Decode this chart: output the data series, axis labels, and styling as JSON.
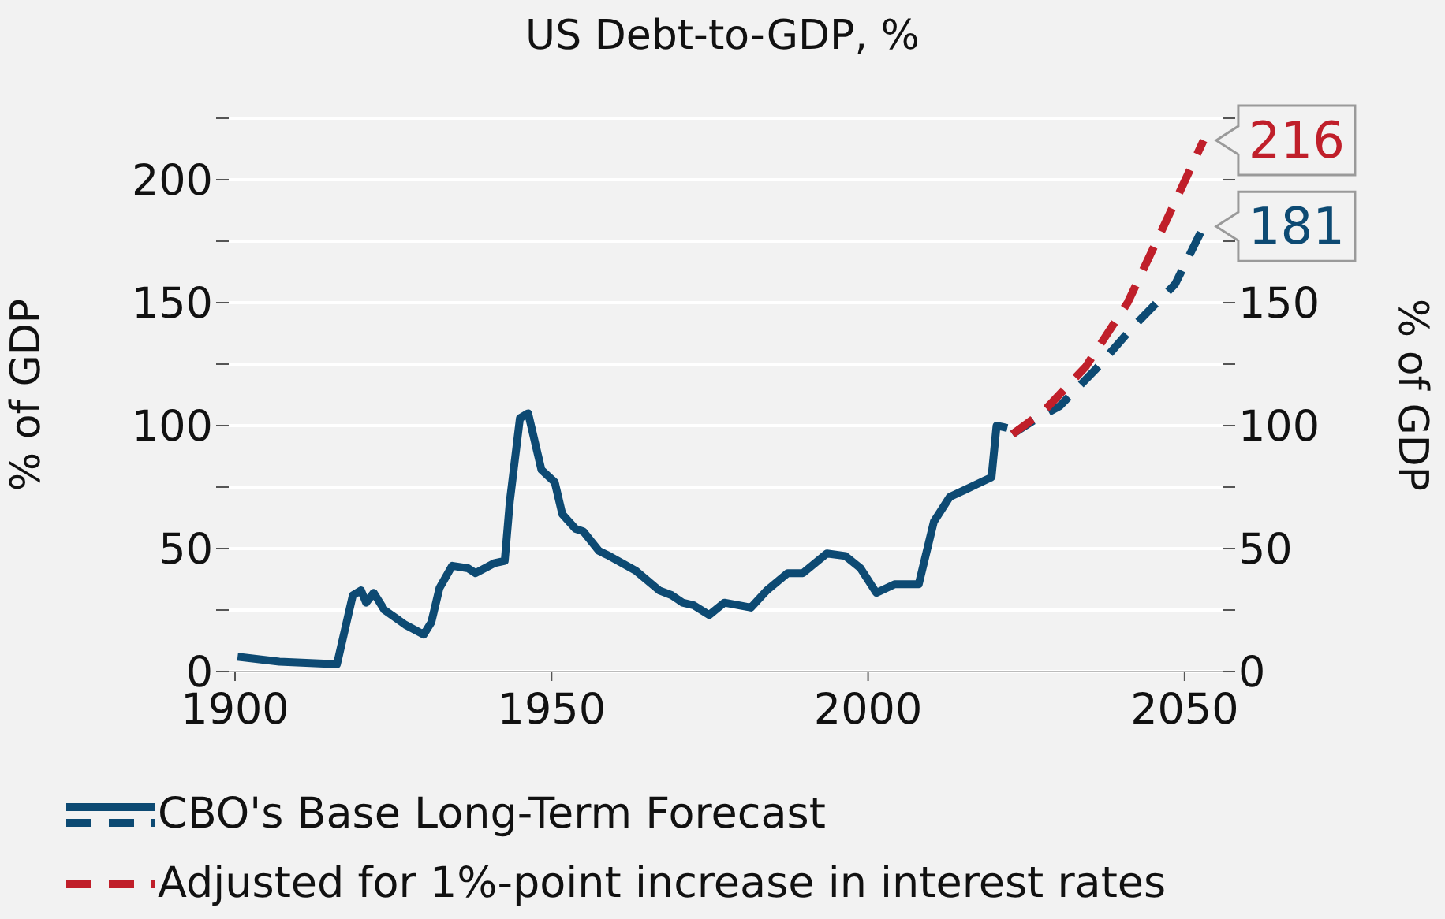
{
  "chart_data": {
    "type": "line",
    "title": "US Debt-to-GDP, %",
    "ylabel": "% of GDP",
    "y2label": "% of GDP",
    "xlim": [
      1899,
      2056
    ],
    "xticks": [
      1900,
      1950,
      2000,
      2050
    ],
    "ylim": [
      0,
      225
    ],
    "yticks": [
      0,
      {
        "value": 25,
        "label": null
      },
      50,
      {
        "value": 75,
        "label": null
      },
      100,
      {
        "value": 125,
        "label": null
      },
      150,
      {
        "value": 175,
        "label": null
      },
      200,
      {
        "value": 225,
        "label": null
      }
    ],
    "y2lim": [
      0,
      225
    ],
    "y2ticks": [
      0,
      {
        "value": 25,
        "label": null
      },
      50,
      {
        "value": 75,
        "label": null
      },
      100,
      {
        "value": 125,
        "label": null
      },
      150,
      {
        "value": 175,
        "label": null
      },
      {
        "value": 200,
        "label": null
      },
      {
        "value": 225,
        "label": null
      }
    ],
    "grid": "y",
    "legend": "bottom",
    "marker": "none",
    "series": [
      {
        "name": "CBO's Base Long-Term Forecast",
        "color": "#0d4a73",
        "line_style": "solid",
        "x": [
          1900.4,
          1907,
          1916.1,
          1918.6,
          1919.9,
          1920.7,
          1921.9,
          1923.6,
          1926.9,
          1929.8,
          1931,
          1932.3,
          1934.3,
          1936.8,
          1938,
          1940.9,
          1942.6,
          1943.4,
          1945,
          1946.3,
          1948.4,
          1950.5,
          1951.7,
          1953.8,
          1955,
          1957.5,
          1959.1,
          1963.3,
          1967,
          1969,
          1970.7,
          1972.4,
          1974.9,
          1977.3,
          1981.5,
          1984,
          1987.3,
          1989.7,
          1993.5,
          1996.4,
          1998.8,
          2001.3,
          2004.2,
          2008,
          2010.4,
          2012.9,
          2015.4,
          2017,
          2019.5,
          2020.3,
          2022
        ],
        "values": [
          6,
          4,
          3,
          31,
          33,
          28,
          32,
          25,
          19,
          15,
          20,
          34,
          43,
          42,
          40,
          44,
          45,
          69,
          103,
          105,
          82,
          77,
          64,
          58,
          57,
          49,
          47,
          41,
          33,
          31,
          28,
          27,
          23,
          28,
          26,
          33,
          40,
          40,
          48,
          47,
          42,
          32,
          35.5,
          35.5,
          61,
          71,
          74,
          76,
          79,
          100,
          99
        ]
      },
      {
        "color": "#0d4a73",
        "line_style": "dashed",
        "x": [
          2022.8,
          2026.1,
          2030.3,
          2036,
          2041.8,
          2048.5,
          2053
        ],
        "values": [
          96.5,
          102,
          108,
          123,
          140,
          157.5,
          181
        ],
        "value_labels": [
          null,
          null,
          null,
          null,
          null,
          null,
          "181"
        ]
      },
      {
        "name": "Adjusted for 1%-point increase in interest rates",
        "color": "#c01f2a",
        "line_style": "dashed",
        "x": [
          2022.8,
          2027.8,
          2034.4,
          2041,
          2047.6,
          2053
        ],
        "values": [
          96.5,
          106,
          124,
          150,
          186,
          216
        ],
        "value_labels": [
          null,
          null,
          null,
          null,
          null,
          "216"
        ]
      }
    ]
  }
}
